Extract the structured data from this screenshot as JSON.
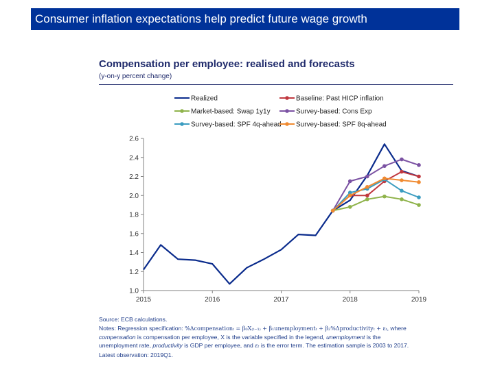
{
  "banner": {
    "text": "Consumer inflation expectations help predict future wage growth"
  },
  "chart_data": {
    "type": "line",
    "title": "Compensation per employee: realised and forecasts",
    "subtitle": "(y-on-y percent change)",
    "ylim": [
      1.0,
      2.6
    ],
    "yticks": [
      "1.0",
      "1.2",
      "1.4",
      "1.6",
      "1.8",
      "2.0",
      "2.2",
      "2.4",
      "2.6"
    ],
    "xlim": [
      2015,
      2019
    ],
    "xticks": [
      "2015",
      "2016",
      "2017",
      "2018",
      "2019"
    ],
    "grid": false,
    "legend_position": "top",
    "series": [
      {
        "name": "Realized",
        "color": "#0a2b8c",
        "marker": false,
        "x": [
          2015.0,
          2015.25,
          2015.5,
          2015.75,
          2016.0,
          2016.25,
          2016.5,
          2016.75,
          2017.0,
          2017.25,
          2017.5,
          2017.75,
          2018.0,
          2018.25,
          2018.5,
          2018.75,
          2019.0
        ],
        "values": [
          1.22,
          1.48,
          1.33,
          1.32,
          1.28,
          1.07,
          1.24,
          1.33,
          1.43,
          1.59,
          1.58,
          1.84,
          1.95,
          2.21,
          2.54,
          2.26,
          2.2
        ]
      },
      {
        "name": "Baseline: Past HICP inflation",
        "color": "#c0383f",
        "marker": true,
        "x": [
          2017.75,
          2018.0,
          2018.25,
          2018.5,
          2018.75,
          2019.0
        ],
        "values": [
          1.84,
          2.0,
          2.0,
          2.15,
          2.25,
          2.2
        ]
      },
      {
        "name": "Market-based: Swap 1y1y",
        "color": "#8fb34b",
        "marker": true,
        "x": [
          2017.75,
          2018.0,
          2018.25,
          2018.5,
          2018.75,
          2019.0
        ],
        "values": [
          1.84,
          1.88,
          1.96,
          1.99,
          1.96,
          1.9
        ]
      },
      {
        "name": "Survey-based: Cons Exp",
        "color": "#7b52a3",
        "marker": true,
        "x": [
          2017.75,
          2018.0,
          2018.25,
          2018.5,
          2018.75,
          2019.0
        ],
        "values": [
          1.84,
          2.15,
          2.2,
          2.31,
          2.38,
          2.32
        ]
      },
      {
        "name": "Survey-based: SPF 4q-ahead",
        "color": "#3a9cc0",
        "marker": true,
        "x": [
          2017.75,
          2018.0,
          2018.25,
          2018.5,
          2018.75,
          2019.0
        ],
        "values": [
          1.84,
          2.03,
          2.07,
          2.17,
          2.05,
          1.98
        ]
      },
      {
        "name": "Survey-based: SPF 8q-ahead",
        "color": "#f08a30",
        "marker": true,
        "x": [
          2017.75,
          2018.0,
          2018.25,
          2018.5,
          2018.75,
          2019.0
        ],
        "values": [
          1.84,
          2.0,
          2.09,
          2.18,
          2.16,
          2.14
        ]
      }
    ]
  },
  "footer": {
    "source": "Source: ECB calculations.",
    "notes_prefix": "Notes: Regression specification:",
    "formula": "%Δcompensationₜ = β₀X₍ₜ₋₁₎ + β₁unemploymentₜ + β₂%Δproductivityₜ + εₜ",
    "notes_where": ", where",
    "def_comp_term": "compensation",
    "def_comp_text": " is compensation per employee,  X is the variable specified in the legend, ",
    "def_unemp_term": "unemployment",
    "def_unemp_text": " is the",
    "def_unemp_text2": "unemployment rate, ",
    "def_prod_term": "productivity",
    "def_prod_text": " is GDP per employee, and ",
    "def_eps_term": "εₜ",
    "def_eps_text": " is the error term. The estimation sample is 2003 to 2017.",
    "latest": "Latest observation: 2019Q1."
  }
}
